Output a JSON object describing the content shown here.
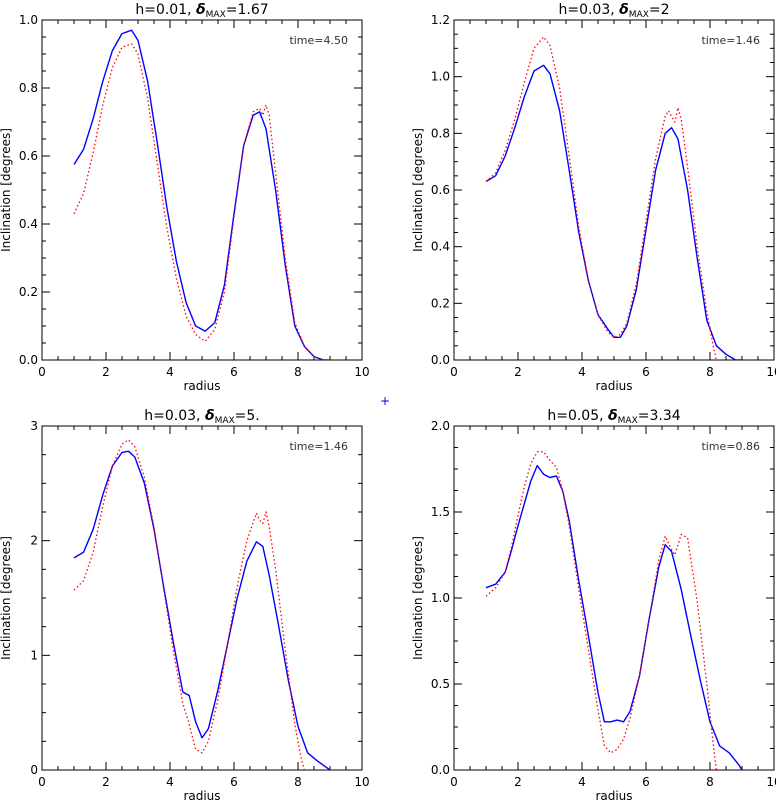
{
  "chart_data": [
    {
      "type": "line",
      "title_prefix": "h=0.01, ",
      "title_delta": "δ",
      "title_sub": "MAX",
      "title_suffix": "=1.67",
      "annotation": "time=4.50",
      "xlabel": "radius",
      "ylabel": "Inclination [degrees]",
      "xlim": [
        0,
        10
      ],
      "ylim": [
        0,
        1.0
      ],
      "xticks": [
        0,
        2,
        4,
        6,
        8,
        10
      ],
      "xtick_labels": [
        "0",
        "2",
        "4",
        "6",
        "8",
        "10"
      ],
      "yticks": [
        0,
        0.2,
        0.4,
        0.6,
        0.8,
        1.0
      ],
      "ytick_labels": [
        "0.0",
        "0.2",
        "0.4",
        "0.6",
        "0.8",
        "1.0"
      ],
      "grid": false,
      "series": [
        {
          "style": "solid",
          "color": "#0000ff",
          "x": [
            1.0,
            1.3,
            1.6,
            1.9,
            2.2,
            2.5,
            2.8,
            3.0,
            3.3,
            3.6,
            3.9,
            4.2,
            4.5,
            4.8,
            5.1,
            5.4,
            5.7,
            6.0,
            6.3,
            6.6,
            6.8,
            7.0,
            7.3,
            7.6,
            7.9,
            8.2,
            8.5,
            8.8,
            9.0
          ],
          "y": [
            0.575,
            0.62,
            0.71,
            0.82,
            0.91,
            0.96,
            0.97,
            0.94,
            0.82,
            0.64,
            0.45,
            0.29,
            0.17,
            0.1,
            0.085,
            0.11,
            0.22,
            0.43,
            0.63,
            0.72,
            0.73,
            0.68,
            0.5,
            0.28,
            0.1,
            0.04,
            0.01,
            0.0,
            0.0
          ]
        },
        {
          "style": "dotted",
          "color": "#ff0000",
          "x": [
            1.0,
            1.3,
            1.6,
            1.9,
            2.2,
            2.5,
            2.8,
            3.0,
            3.3,
            3.6,
            3.9,
            4.2,
            4.5,
            4.8,
            5.1,
            5.4,
            5.7,
            6.0,
            6.3,
            6.6,
            6.8,
            6.9,
            7.0,
            7.1,
            7.3,
            7.6,
            7.9,
            8.2,
            8.5,
            8.8,
            9.0
          ],
          "y": [
            0.43,
            0.49,
            0.61,
            0.75,
            0.86,
            0.92,
            0.93,
            0.9,
            0.77,
            0.58,
            0.39,
            0.24,
            0.13,
            0.075,
            0.055,
            0.09,
            0.2,
            0.42,
            0.63,
            0.73,
            0.74,
            0.72,
            0.75,
            0.72,
            0.55,
            0.3,
            0.11,
            0.04,
            0.01,
            0.0,
            0.0
          ]
        }
      ]
    },
    {
      "type": "line",
      "title_prefix": "h=0.03, ",
      "title_delta": "δ",
      "title_sub": "MAX",
      "title_suffix": "=2",
      "annotation": "time=1.46",
      "xlabel": "radius",
      "ylabel": "Inclination [degrees]",
      "xlim": [
        0,
        10
      ],
      "ylim": [
        0,
        1.2
      ],
      "xticks": [
        0,
        2,
        4,
        6,
        8,
        10
      ],
      "xtick_labels": [
        "0",
        "2",
        "4",
        "6",
        "8",
        "10"
      ],
      "yticks": [
        0,
        0.2,
        0.4,
        0.6,
        0.8,
        1.0,
        1.2
      ],
      "ytick_labels": [
        "0.0",
        "0.2",
        "0.4",
        "0.6",
        "0.8",
        "1.0",
        "1.2"
      ],
      "grid": false,
      "series": [
        {
          "style": "solid",
          "color": "#0000ff",
          "x": [
            1.0,
            1.3,
            1.6,
            1.9,
            2.2,
            2.5,
            2.8,
            3.0,
            3.3,
            3.6,
            3.9,
            4.2,
            4.5,
            4.8,
            5.0,
            5.2,
            5.4,
            5.7,
            6.0,
            6.3,
            6.6,
            6.8,
            7.0,
            7.3,
            7.6,
            7.9,
            8.2,
            8.5,
            8.8,
            9.0
          ],
          "y": [
            0.63,
            0.65,
            0.72,
            0.82,
            0.93,
            1.02,
            1.04,
            1.01,
            0.88,
            0.67,
            0.45,
            0.28,
            0.16,
            0.11,
            0.08,
            0.08,
            0.12,
            0.25,
            0.46,
            0.67,
            0.8,
            0.82,
            0.78,
            0.6,
            0.36,
            0.14,
            0.05,
            0.02,
            0.0,
            0.0
          ]
        },
        {
          "style": "dotted",
          "color": "#ff0000",
          "x": [
            1.0,
            1.3,
            1.6,
            1.9,
            2.2,
            2.5,
            2.8,
            3.0,
            3.3,
            3.6,
            3.9,
            4.2,
            4.5,
            4.8,
            5.0,
            5.2,
            5.4,
            5.7,
            6.0,
            6.3,
            6.6,
            6.7,
            6.8,
            6.9,
            7.0,
            7.1,
            7.3,
            7.6,
            7.9,
            8.1,
            8.2
          ],
          "y": [
            0.63,
            0.66,
            0.74,
            0.85,
            0.98,
            1.1,
            1.14,
            1.11,
            0.96,
            0.72,
            0.47,
            0.28,
            0.16,
            0.1,
            0.08,
            0.09,
            0.13,
            0.27,
            0.49,
            0.71,
            0.86,
            0.88,
            0.86,
            0.84,
            0.89,
            0.85,
            0.68,
            0.4,
            0.17,
            0.05,
            0.0
          ]
        }
      ]
    },
    {
      "type": "line",
      "title_prefix": "h=0.03, ",
      "title_delta": "δ",
      "title_sub": "MAX",
      "title_suffix": "=5.",
      "annotation": "time=1.46",
      "xlabel": "radius",
      "ylabel": "Inclination [degrees]",
      "xlim": [
        0,
        10
      ],
      "ylim": [
        0,
        3
      ],
      "xticks": [
        0,
        2,
        4,
        6,
        8,
        10
      ],
      "xtick_labels": [
        "0",
        "2",
        "4",
        "6",
        "8",
        "10"
      ],
      "yticks": [
        0,
        1,
        2,
        3
      ],
      "ytick_labels": [
        "0",
        "1",
        "2",
        "3"
      ],
      "grid": false,
      "series": [
        {
          "style": "solid",
          "color": "#0000ff",
          "x": [
            1.0,
            1.3,
            1.6,
            1.9,
            2.2,
            2.5,
            2.7,
            2.9,
            3.2,
            3.5,
            3.8,
            4.1,
            4.4,
            4.6,
            4.8,
            5.0,
            5.2,
            5.5,
            5.8,
            6.1,
            6.4,
            6.7,
            6.9,
            7.1,
            7.4,
            7.7,
            8.0,
            8.3,
            8.6,
            8.9,
            9.0
          ],
          "y": [
            1.85,
            1.9,
            2.1,
            2.4,
            2.65,
            2.77,
            2.78,
            2.73,
            2.5,
            2.1,
            1.6,
            1.12,
            0.68,
            0.65,
            0.42,
            0.28,
            0.36,
            0.7,
            1.1,
            1.5,
            1.82,
            1.99,
            1.95,
            1.7,
            1.25,
            0.78,
            0.38,
            0.15,
            0.08,
            0.02,
            0.0
          ]
        },
        {
          "style": "dotted",
          "color": "#ff0000",
          "x": [
            1.0,
            1.3,
            1.6,
            1.9,
            2.2,
            2.5,
            2.7,
            2.9,
            3.2,
            3.5,
            3.8,
            4.1,
            4.4,
            4.6,
            4.8,
            5.0,
            5.2,
            5.5,
            5.8,
            6.1,
            6.4,
            6.7,
            6.8,
            6.9,
            7.0,
            7.1,
            7.3,
            7.6,
            7.9,
            8.1,
            8.2
          ],
          "y": [
            1.57,
            1.65,
            1.9,
            2.3,
            2.65,
            2.84,
            2.88,
            2.82,
            2.55,
            2.12,
            1.58,
            1.05,
            0.58,
            0.4,
            0.18,
            0.15,
            0.25,
            0.62,
            1.1,
            1.6,
            2.0,
            2.24,
            2.18,
            2.15,
            2.25,
            2.12,
            1.75,
            1.05,
            0.4,
            0.1,
            0.0
          ]
        }
      ]
    },
    {
      "type": "line",
      "title_prefix": "h=0.05, ",
      "title_delta": "δ",
      "title_sub": "MAX",
      "title_suffix": "=3.34",
      "annotation": "time=0.86",
      "xlabel": "radius",
      "ylabel": "Inclination [degrees]",
      "xlim": [
        0,
        10
      ],
      "ylim": [
        0,
        2.0
      ],
      "xticks": [
        0,
        2,
        4,
        6,
        8,
        10
      ],
      "xtick_labels": [
        "0",
        "2",
        "4",
        "6",
        "8",
        "10"
      ],
      "yticks": [
        0,
        0.5,
        1.0,
        1.5,
        2.0
      ],
      "ytick_labels": [
        "0.0",
        "0.5",
        "1.0",
        "1.5",
        "2.0"
      ],
      "grid": false,
      "series": [
        {
          "style": "solid",
          "color": "#0000ff",
          "x": [
            1.0,
            1.3,
            1.6,
            1.8,
            2.0,
            2.2,
            2.4,
            2.6,
            2.8,
            3.0,
            3.2,
            3.4,
            3.6,
            3.9,
            4.2,
            4.5,
            4.7,
            4.9,
            5.1,
            5.3,
            5.5,
            5.8,
            6.1,
            6.4,
            6.6,
            6.8,
            7.1,
            7.4,
            7.7,
            8.0,
            8.3,
            8.6,
            8.9,
            9.0
          ],
          "y": [
            1.06,
            1.08,
            1.15,
            1.28,
            1.42,
            1.55,
            1.68,
            1.77,
            1.72,
            1.7,
            1.71,
            1.62,
            1.45,
            1.1,
            0.78,
            0.45,
            0.28,
            0.28,
            0.29,
            0.28,
            0.34,
            0.55,
            0.88,
            1.18,
            1.31,
            1.27,
            1.05,
            0.78,
            0.52,
            0.28,
            0.14,
            0.1,
            0.03,
            0.0
          ]
        },
        {
          "style": "dotted",
          "color": "#ff0000",
          "x": [
            1.0,
            1.3,
            1.6,
            1.8,
            2.0,
            2.2,
            2.4,
            2.6,
            2.8,
            3.0,
            3.2,
            3.4,
            3.6,
            3.9,
            4.2,
            4.5,
            4.7,
            4.9,
            5.1,
            5.3,
            5.5,
            5.8,
            6.1,
            6.4,
            6.6,
            6.8,
            6.9,
            7.1,
            7.3,
            7.6,
            7.9,
            8.1,
            8.2
          ],
          "y": [
            1.01,
            1.06,
            1.15,
            1.3,
            1.48,
            1.65,
            1.78,
            1.85,
            1.85,
            1.8,
            1.76,
            1.62,
            1.42,
            1.05,
            0.7,
            0.35,
            0.14,
            0.1,
            0.12,
            0.18,
            0.3,
            0.55,
            0.88,
            1.22,
            1.36,
            1.28,
            1.25,
            1.37,
            1.35,
            0.98,
            0.5,
            0.15,
            0.0
          ]
        }
      ]
    }
  ],
  "center_marker": "+"
}
